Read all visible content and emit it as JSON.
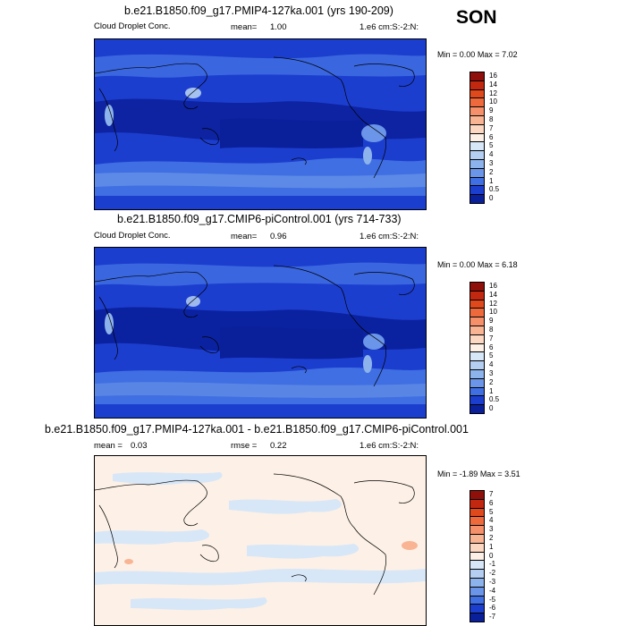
{
  "season": "SON",
  "panels": [
    {
      "title": "b.e21.B1850.f09_g17.PMIP4-127ka.001 (yrs 190-209)",
      "left_label": "Cloud Droplet Conc.",
      "mean_label": "mean=",
      "mean_value": "1.00",
      "units": "1.e6 cm:S:-2:N:",
      "min_label": "Min =",
      "min_value": "0.00",
      "max_label": "Max =",
      "max_value": "7.02",
      "colorbar": [
        "16",
        "14",
        "12",
        "10",
        "9",
        "8",
        "7",
        "6",
        "5",
        "4",
        "3",
        "2",
        "1",
        "0.5",
        "0"
      ],
      "palette": [
        "#8f0f0a",
        "#c2270f",
        "#e0491c",
        "#ee6a3c",
        "#f5906a",
        "#f9b493",
        "#fcd8c3",
        "#fdf0e6",
        "#d7e7f8",
        "#b4cff2",
        "#8db3ec",
        "#6a95e8",
        "#3f6fe2",
        "#1c3ecf",
        "#0a1f9a"
      ]
    },
    {
      "title": "b.e21.B1850.f09_g17.CMIP6-piControl.001 (yrs 714-733)",
      "left_label": "Cloud Droplet Conc.",
      "mean_label": "mean=",
      "mean_value": "0.96",
      "units": "1.e6 cm:S:-2:N:",
      "min_label": "Min =",
      "min_value": "0.00",
      "max_label": "Max =",
      "max_value": "6.18",
      "colorbar": [
        "16",
        "14",
        "12",
        "10",
        "9",
        "8",
        "7",
        "6",
        "5",
        "4",
        "3",
        "2",
        "1",
        "0.5",
        "0"
      ],
      "palette": [
        "#8f0f0a",
        "#c2270f",
        "#e0491c",
        "#ee6a3c",
        "#f5906a",
        "#f9b493",
        "#fcd8c3",
        "#fdf0e6",
        "#d7e7f8",
        "#b4cff2",
        "#8db3ec",
        "#6a95e8",
        "#3f6fe2",
        "#1c3ecf",
        "#0a1f9a"
      ]
    },
    {
      "title": "b.e21.B1850.f09_g17.PMIP4-127ka.001 - b.e21.B1850.f09_g17.CMIP6-piControl.001",
      "left_label": "mean =",
      "left_value": "0.03",
      "mean_label": "rmse =",
      "mean_value": "0.22",
      "units": "1.e6 cm:S:-2:N:",
      "min_label": "Min =",
      "min_value": "-1.89",
      "max_label": "Max =",
      "max_value": "3.51",
      "colorbar": [
        "7",
        "6",
        "5",
        "4",
        "3",
        "2",
        "1",
        "0",
        "-1",
        "-2",
        "-3",
        "-4",
        "-5",
        "-6",
        "-7"
      ],
      "palette": [
        "#8f0f0a",
        "#c2270f",
        "#e0491c",
        "#ee6a3c",
        "#f5906a",
        "#f9b493",
        "#fcd8c3",
        "#fdf0e6",
        "#d7e7f8",
        "#b4cff2",
        "#8db3ec",
        "#6a95e8",
        "#3f6fe2",
        "#1c3ecf",
        "#0a1f9a"
      ]
    }
  ]
}
